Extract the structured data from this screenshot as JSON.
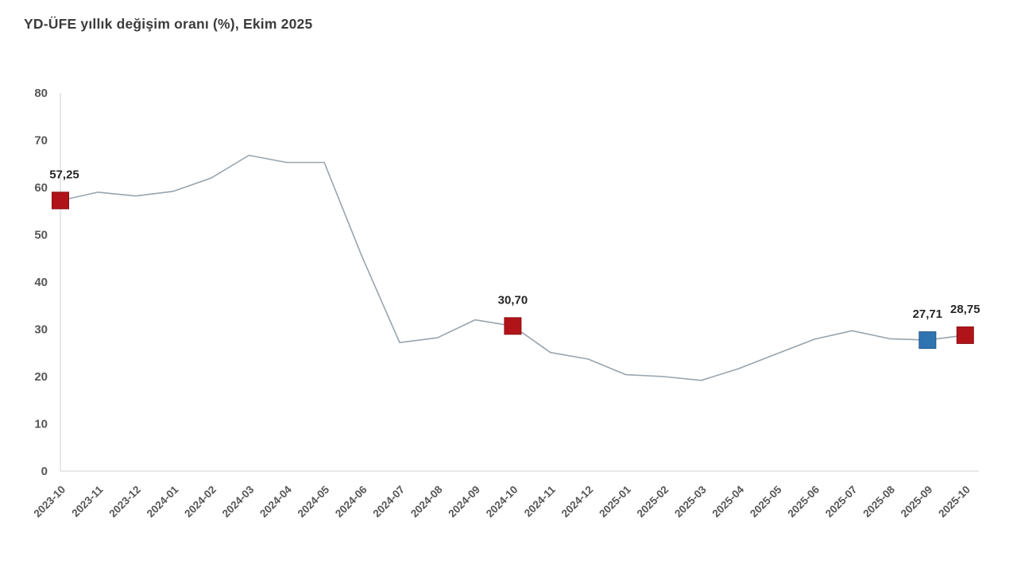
{
  "page": {
    "title": "YD-ÜFE yıllık değişim oranı (%), Ekim 2025"
  },
  "chart_data": {
    "type": "line",
    "title": "YD-ÜFE yıllık değişim oranı (%), Ekim 2025",
    "categories": [
      "2023-10",
      "2023-11",
      "2023-12",
      "2024-01",
      "2024-02",
      "2024-03",
      "2024-04",
      "2024-05",
      "2024-06",
      "2024-07",
      "2024-08",
      "2024-09",
      "2024-10",
      "2024-11",
      "2024-12",
      "2025-01",
      "2025-02",
      "2025-03",
      "2025-04",
      "2025-05",
      "2025-06",
      "2025-07",
      "2025-08",
      "2025-09",
      "2025-10"
    ],
    "values": [
      57.25,
      59.0,
      58.2,
      59.2,
      62.0,
      66.8,
      65.3,
      65.3,
      45.4,
      27.2,
      28.2,
      32.0,
      30.7,
      25.1,
      23.7,
      20.4,
      20.0,
      19.2,
      21.7,
      24.8,
      27.9,
      29.7,
      28.0,
      27.71,
      28.75
    ],
    "xlabel": "",
    "ylabel": "",
    "ylim": [
      0,
      80
    ],
    "yticks": [
      0,
      10,
      20,
      30,
      40,
      50,
      60,
      70,
      80
    ],
    "grid": false,
    "legend_position": "none",
    "line_color": "#98a4ad",
    "axis_color": "#d9d9d9",
    "tick_label_color": "#575757",
    "value_label_color": "#262626",
    "annotated_points": [
      {
        "category": "2023-10",
        "value": 57.25,
        "label": "57,25",
        "marker_color": "#b11418",
        "marker_edge": "#8c1014"
      },
      {
        "category": "2024-10",
        "value": 30.7,
        "label": "30,70",
        "marker_color": "#b11418",
        "marker_edge": "#8c1014"
      },
      {
        "category": "2025-09",
        "value": 27.71,
        "label": "27,71",
        "marker_color": "#2e74b0",
        "marker_edge": "#23598a"
      },
      {
        "category": "2025-10",
        "value": 28.75,
        "label": "28,75",
        "marker_color": "#b11418",
        "marker_edge": "#8c1014"
      }
    ]
  }
}
